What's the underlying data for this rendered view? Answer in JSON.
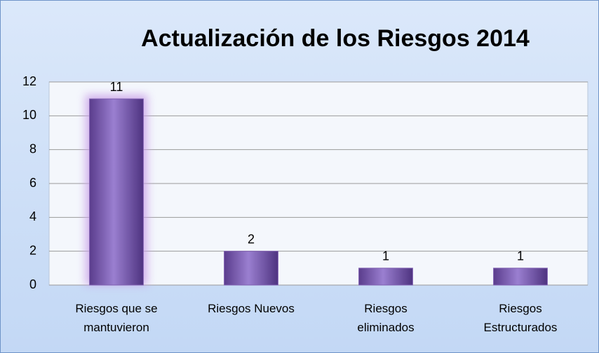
{
  "chart_data": {
    "type": "bar",
    "title": "Actualización de los Riesgos 2014",
    "categories": [
      "Riesgos que se mantuvieron",
      "Riesgos Nuevos",
      "Riesgos eliminados",
      "Riesgos Estructurados"
    ],
    "values": [
      11,
      2,
      1,
      1
    ],
    "color": "#7f5fb0",
    "ylim": [
      0,
      12
    ],
    "yticks": [
      0,
      2,
      4,
      6,
      8,
      10,
      12
    ],
    "grid": true
  }
}
